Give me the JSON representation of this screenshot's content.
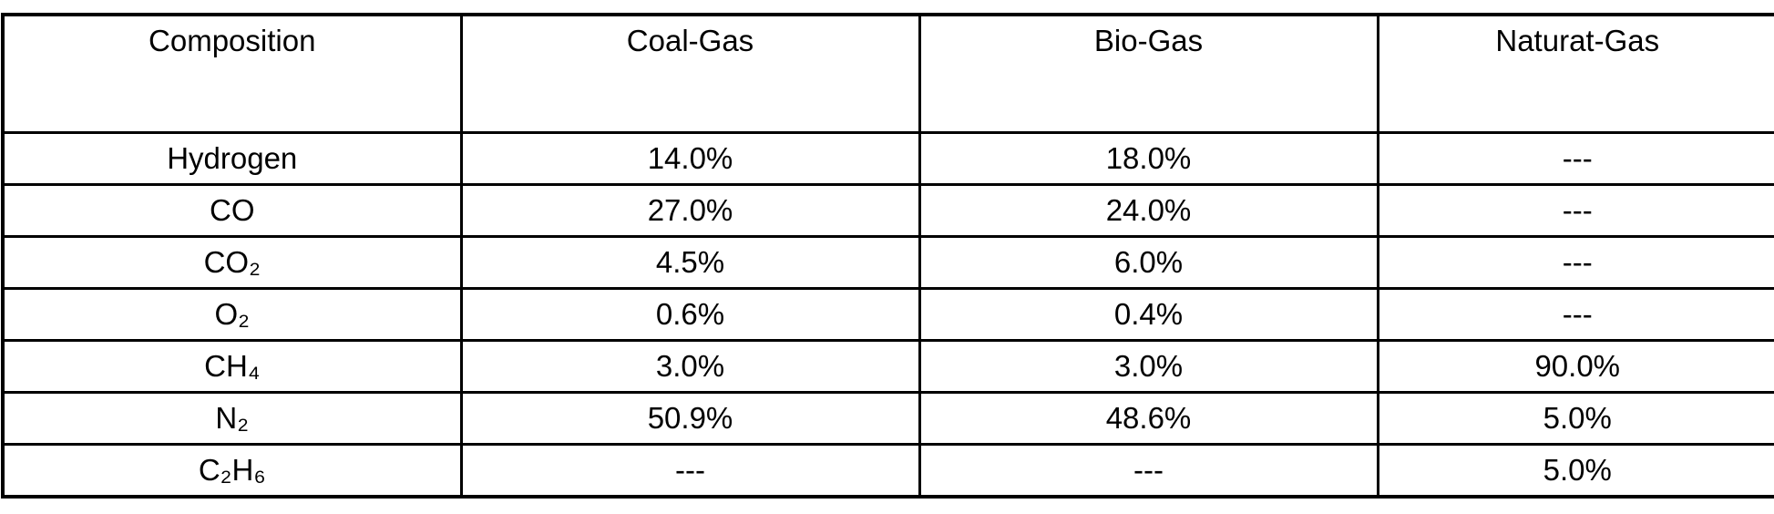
{
  "table": {
    "headers": {
      "composition": "Composition",
      "coal": "Coal-Gas",
      "bio": "Bio-Gas",
      "natural": "Naturat-Gas"
    },
    "rows": [
      {
        "label": "Hydrogen",
        "coal": "14.0%",
        "bio": "18.0%",
        "natural": "---"
      },
      {
        "label": "CO",
        "coal": "27.0%",
        "bio": "24.0%",
        "natural": "---"
      },
      {
        "label": "CO₂",
        "coal": "4.5%",
        "bio": "6.0%",
        "natural": "---"
      },
      {
        "label": "O₂",
        "coal": "0.6%",
        "bio": "0.4%",
        "natural": "---"
      },
      {
        "label": "CH₄",
        "coal": "3.0%",
        "bio": "3.0%",
        "natural": "90.0%"
      },
      {
        "label": "N₂",
        "coal": "50.9%",
        "bio": "48.6%",
        "natural": "5.0%"
      },
      {
        "label": "C₂H₆",
        "coal": "---",
        "bio": "---",
        "natural": "5.0%"
      }
    ],
    "colors": {
      "border": "#000000",
      "text": "#000000",
      "background": "#ffffff"
    }
  }
}
